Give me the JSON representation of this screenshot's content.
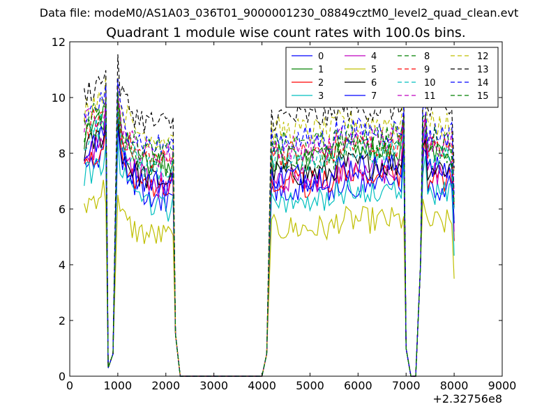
{
  "chart_data": {
    "type": "line",
    "suptitle": "Data file: modeM0/AS1A03_036T01_9000001230_08849cztM0_level2_quad_clean.evt",
    "title": "Quadrant 1 module wise count rates with 100.0s bins.",
    "xlabel": "",
    "ylabel": "",
    "x_offset_label": "+2.32756e8",
    "xlim": [
      0,
      9000
    ],
    "ylim": [
      0,
      12
    ],
    "xticks": [
      0,
      1000,
      2000,
      3000,
      4000,
      5000,
      6000,
      7000,
      8000,
      9000
    ],
    "yticks": [
      0,
      2,
      4,
      6,
      8,
      10,
      12
    ],
    "legend_position": "top-right",
    "gaps": [
      [
        2300,
        4000
      ],
      [
        7100,
        7300
      ]
    ],
    "series": [
      {
        "name": "0",
        "color": "#0000ff",
        "dashed": false,
        "level": 6.6,
        "peak": 9.5
      },
      {
        "name": "1",
        "color": "#008000",
        "dashed": false,
        "level": 7.8,
        "peak": 10.0
      },
      {
        "name": "2",
        "color": "#ff0000",
        "dashed": false,
        "level": 6.9,
        "peak": 9.4
      },
      {
        "name": "3",
        "color": "#00bfbf",
        "dashed": false,
        "level": 6.3,
        "peak": 8.6
      },
      {
        "name": "4",
        "color": "#bf00bf",
        "dashed": false,
        "level": 7.1,
        "peak": 10.3
      },
      {
        "name": "5",
        "color": "#bfbf00",
        "dashed": false,
        "level": 5.3,
        "peak": 6.6
      },
      {
        "name": "6",
        "color": "#000000",
        "dashed": false,
        "level": 7.3,
        "peak": 9.2
      },
      {
        "name": "7",
        "color": "#0000ff",
        "dashed": false,
        "level": 7.2,
        "peak": 9.0
      },
      {
        "name": "8",
        "color": "#008000",
        "dashed": true,
        "level": 7.9,
        "peak": 9.8
      },
      {
        "name": "9",
        "color": "#ff0000",
        "dashed": true,
        "level": 8.0,
        "peak": 10.0
      },
      {
        "name": "10",
        "color": "#00bfbf",
        "dashed": true,
        "level": 7.7,
        "peak": 9.6
      },
      {
        "name": "11",
        "color": "#bf00bf",
        "dashed": true,
        "level": 8.2,
        "peak": 10.2
      },
      {
        "name": "12",
        "color": "#bfbf00",
        "dashed": true,
        "level": 8.8,
        "peak": 10.9
      },
      {
        "name": "13",
        "color": "#000000",
        "dashed": true,
        "level": 9.3,
        "peak": 11.4
      },
      {
        "name": "14",
        "color": "#0000ff",
        "dashed": true,
        "level": 8.5,
        "peak": 10.6
      },
      {
        "name": "15",
        "color": "#008000",
        "dashed": true,
        "level": 8.3,
        "peak": 10.1
      }
    ]
  }
}
